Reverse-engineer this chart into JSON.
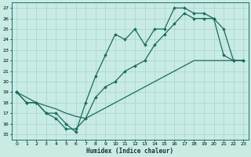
{
  "xlabel": "Humidex (Indice chaleur)",
  "xlim": [
    -0.5,
    23.5
  ],
  "ylim": [
    14.5,
    27.5
  ],
  "xticks": [
    0,
    1,
    2,
    3,
    4,
    5,
    6,
    7,
    8,
    9,
    10,
    11,
    12,
    13,
    14,
    15,
    16,
    17,
    18,
    19,
    20,
    21,
    22,
    23
  ],
  "yticks": [
    15,
    16,
    17,
    18,
    19,
    20,
    21,
    22,
    23,
    24,
    25,
    26,
    27
  ],
  "bg_color": "#c8ebe4",
  "grid_color": "#a8d4cc",
  "line_color": "#1a6b60",
  "line1_x": [
    0,
    1,
    2,
    3,
    4,
    5,
    6,
    7,
    8,
    9,
    10,
    11,
    12,
    13,
    14,
    15,
    16,
    17,
    18,
    19,
    20,
    21,
    22,
    23
  ],
  "line1_y": [
    19,
    18,
    18,
    17,
    17,
    16,
    15.2,
    18,
    20.5,
    22.5,
    24.5,
    24,
    25,
    23.5,
    25,
    25,
    27,
    27,
    26.5,
    26.5,
    26,
    25,
    22,
    22
  ],
  "line2_x": [
    0,
    1,
    2,
    3,
    4,
    5,
    6,
    7,
    8,
    9,
    10,
    11,
    12,
    13,
    14,
    15,
    16,
    17,
    18,
    19,
    20,
    21,
    22,
    23
  ],
  "line2_y": [
    19,
    18,
    18,
    17,
    16.5,
    15.5,
    15.5,
    16.5,
    18.5,
    19.5,
    20,
    21,
    21.5,
    22,
    23.5,
    24.5,
    25.5,
    26.5,
    26,
    26,
    26,
    22.5,
    22,
    22
  ],
  "line3_x": [
    0,
    1,
    2,
    3,
    4,
    5,
    6,
    7,
    8,
    9,
    10,
    11,
    12,
    13,
    14,
    15,
    16,
    17,
    18,
    19,
    20,
    21,
    22,
    23
  ],
  "line3_y": [
    19,
    18.5,
    18,
    17.7,
    17.4,
    17,
    16.7,
    16.5,
    17,
    17.5,
    18,
    18.5,
    19,
    19.5,
    20,
    20.5,
    21,
    21.5,
    22,
    22,
    22,
    22,
    22,
    22
  ]
}
